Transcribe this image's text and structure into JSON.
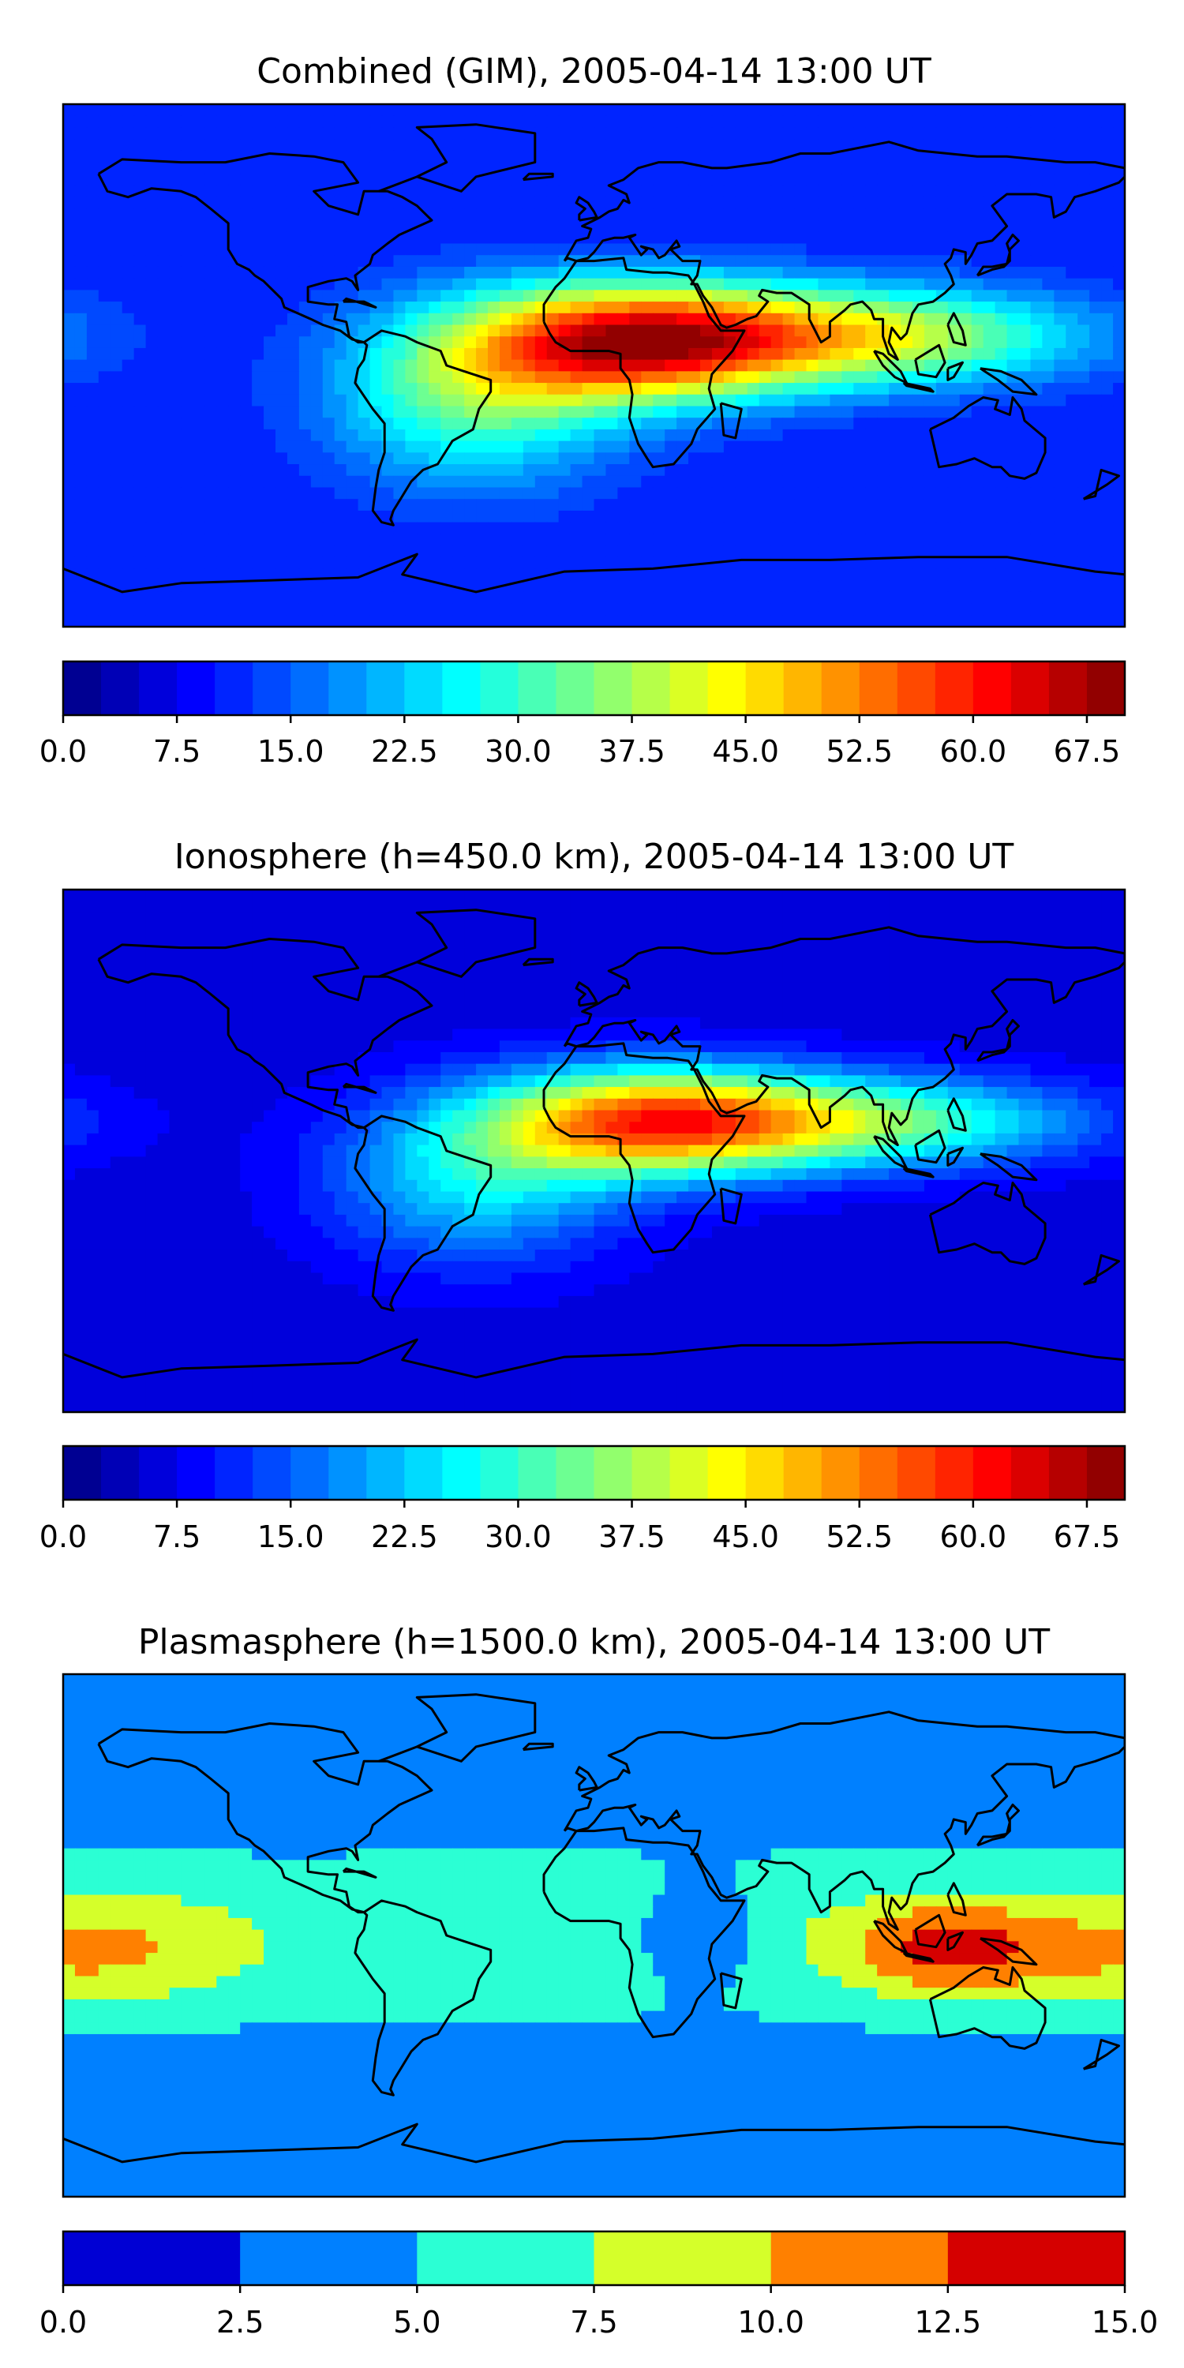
{
  "chart_data": [
    {
      "type": "heatmap",
      "title": "Combined (GIM), 2005-04-14 13:00 UT",
      "map": "world coastlines, equirectangular",
      "colormap": "jet",
      "levels": [
        0,
        2.5,
        5,
        7.5,
        10,
        12.5,
        15,
        17.5,
        20,
        22.5,
        25,
        27.5,
        30,
        32.5,
        35,
        37.5,
        40,
        42.5,
        45,
        47.5,
        50,
        52.5,
        55,
        57.5,
        60,
        62.5,
        65,
        67.5,
        70
      ],
      "colorbar_ticks": [
        "0.0",
        "7.5",
        "15.0",
        "22.5",
        "30.0",
        "37.5",
        "45.0",
        "52.5",
        "60.0",
        "67.5"
      ],
      "field": {
        "background": 10,
        "peaks": [
          {
            "lon": 15,
            "lat": 8,
            "amp": 50,
            "slon": 40,
            "slat": 14
          },
          {
            "lon": 95,
            "lat": 10,
            "amp": 30,
            "slon": 50,
            "slat": 12
          },
          {
            "lon": -40,
            "lat": -10,
            "amp": 22,
            "slon": 35,
            "slat": 22
          }
        ]
      }
    },
    {
      "type": "heatmap",
      "title": "Ionosphere  (h=450.0 km), 2005-04-14 13:00 UT",
      "map": "world coastlines, equirectangular",
      "colormap": "jet",
      "levels": [
        0,
        2.5,
        5,
        7.5,
        10,
        12.5,
        15,
        17.5,
        20,
        22.5,
        25,
        27.5,
        30,
        32.5,
        35,
        37.5,
        40,
        42.5,
        45,
        47.5,
        50,
        52.5,
        55,
        57.5,
        60,
        62.5,
        65,
        67.5,
        70
      ],
      "colorbar_ticks": [
        "0.0",
        "7.5",
        "15.0",
        "22.5",
        "30.0",
        "37.5",
        "45.0",
        "52.5",
        "60.0",
        "67.5"
      ],
      "field": {
        "background": 6,
        "peaks": [
          {
            "lon": 20,
            "lat": 10,
            "amp": 45,
            "slon": 40,
            "slat": 13
          },
          {
            "lon": 95,
            "lat": 10,
            "amp": 26,
            "slon": 50,
            "slat": 11
          },
          {
            "lon": -40,
            "lat": -10,
            "amp": 18,
            "slon": 35,
            "slat": 20
          }
        ]
      }
    },
    {
      "type": "heatmap",
      "title": "Plasmasphere (h=1500.0 km), 2005-04-14 13:00 UT",
      "map": "world coastlines, equirectangular",
      "colormap": "jet",
      "levels": [
        0,
        2.5,
        5,
        7.5,
        10,
        12.5,
        15
      ],
      "colorbar_ticks": [
        "0.0",
        "2.5",
        "5.0",
        "7.5",
        "10.0",
        "12.5",
        "15.0"
      ],
      "field": {
        "background": 4,
        "peaks": [
          {
            "lon": 120,
            "lat": -5,
            "amp": 7,
            "slon": 25,
            "slat": 12
          },
          {
            "lon": -170,
            "lat": -5,
            "amp": 5,
            "slon": 35,
            "slat": 15
          },
          {
            "lon": 0,
            "lat": 0,
            "amp": 3,
            "slon": 160,
            "slat": 20
          },
          {
            "lon": 35,
            "lat": 0,
            "amp": -4,
            "slon": 15,
            "slat": 12
          }
        ]
      }
    }
  ]
}
